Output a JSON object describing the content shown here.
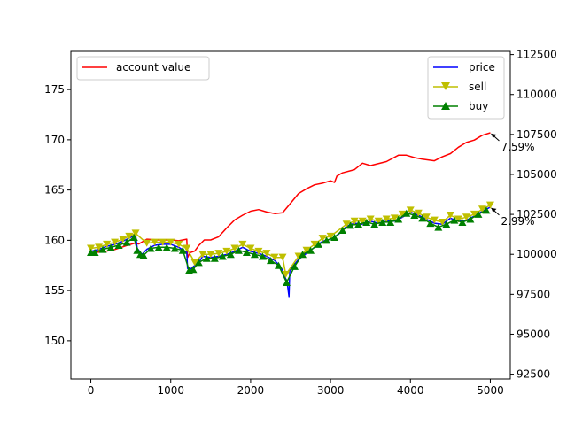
{
  "chart_data": {
    "type": "line",
    "x_ticks": [
      0,
      1000,
      2000,
      3000,
      4000,
      5000
    ],
    "xlim": [
      -250,
      5250
    ],
    "left_axis": {
      "ylim": [
        146.2,
        178.8
      ],
      "ticks": [
        150,
        155,
        160,
        165,
        170,
        175
      ]
    },
    "right_axis": {
      "ylim": [
        92200,
        112700
      ],
      "ticks": [
        92500,
        95000,
        97500,
        100000,
        102500,
        105000,
        107500,
        110000,
        112500
      ]
    },
    "legend_left": {
      "placement": "upper-left",
      "entries": [
        {
          "label": "account value",
          "color": "#ff0000"
        }
      ]
    },
    "legend_right": {
      "placement": "upper-right",
      "entries": [
        {
          "label": "price",
          "color": "#0000ff",
          "marker": "none"
        },
        {
          "label": "sell",
          "color": "#bfbf00",
          "marker": "triangle-down"
        },
        {
          "label": "buy",
          "color": "#008000",
          "marker": "triangle-up"
        }
      ]
    },
    "series": [
      {
        "name": "account value",
        "axis": "right",
        "color": "#ff0000",
        "points": [
          [
            0,
            100100
          ],
          [
            150,
            100150
          ],
          [
            300,
            100300
          ],
          [
            450,
            100550
          ],
          [
            550,
            100700
          ],
          [
            600,
            100650
          ],
          [
            700,
            100950
          ],
          [
            850,
            100900
          ],
          [
            1000,
            100900
          ],
          [
            1100,
            100850
          ],
          [
            1200,
            100950
          ],
          [
            1210,
            99800
          ],
          [
            1240,
            100100
          ],
          [
            1300,
            100200
          ],
          [
            1350,
            100550
          ],
          [
            1420,
            100900
          ],
          [
            1500,
            100900
          ],
          [
            1600,
            101100
          ],
          [
            1700,
            101650
          ],
          [
            1800,
            102150
          ],
          [
            1900,
            102450
          ],
          [
            2000,
            102700
          ],
          [
            2100,
            102800
          ],
          [
            2200,
            102650
          ],
          [
            2300,
            102550
          ],
          [
            2400,
            102600
          ],
          [
            2450,
            102900
          ],
          [
            2500,
            103200
          ],
          [
            2600,
            103800
          ],
          [
            2700,
            104100
          ],
          [
            2800,
            104350
          ],
          [
            2900,
            104450
          ],
          [
            3000,
            104600
          ],
          [
            3050,
            104500
          ],
          [
            3080,
            104900
          ],
          [
            3150,
            105100
          ],
          [
            3300,
            105300
          ],
          [
            3400,
            105700
          ],
          [
            3500,
            105550
          ],
          [
            3700,
            105800
          ],
          [
            3850,
            106200
          ],
          [
            3950,
            106200
          ],
          [
            4050,
            106050
          ],
          [
            4150,
            105950
          ],
          [
            4300,
            105850
          ],
          [
            4400,
            106100
          ],
          [
            4500,
            106300
          ],
          [
            4600,
            106700
          ],
          [
            4700,
            107000
          ],
          [
            4800,
            107150
          ],
          [
            4900,
            107450
          ],
          [
            5000,
            107600
          ]
        ]
      },
      {
        "name": "price",
        "axis": "left",
        "color": "#0000ff",
        "points": [
          [
            0,
            158.9
          ],
          [
            100,
            159.1
          ],
          [
            200,
            159.4
          ],
          [
            300,
            159.6
          ],
          [
            400,
            159.9
          ],
          [
            500,
            160.3
          ],
          [
            560,
            160.6
          ],
          [
            580,
            159.2
          ],
          [
            640,
            158.6
          ],
          [
            700,
            159.1
          ],
          [
            800,
            159.5
          ],
          [
            900,
            159.6
          ],
          [
            1000,
            159.6
          ],
          [
            1100,
            159.3
          ],
          [
            1200,
            158.8
          ],
          [
            1210,
            157.2
          ],
          [
            1260,
            157.2
          ],
          [
            1300,
            157.5
          ],
          [
            1350,
            157.8
          ],
          [
            1400,
            158.4
          ],
          [
            1500,
            158.3
          ],
          [
            1600,
            158.4
          ],
          [
            1700,
            158.6
          ],
          [
            1800,
            158.9
          ],
          [
            1900,
            159.3
          ],
          [
            2000,
            158.9
          ],
          [
            2100,
            158.7
          ],
          [
            2200,
            158.4
          ],
          [
            2300,
            158.0
          ],
          [
            2350,
            157.6
          ],
          [
            2400,
            157.0
          ],
          [
            2430,
            156.4
          ],
          [
            2460,
            155.6
          ],
          [
            2480,
            154.4
          ],
          [
            2490,
            157.0
          ],
          [
            2500,
            157.2
          ],
          [
            2550,
            157.6
          ],
          [
            2600,
            158.1
          ],
          [
            2700,
            158.7
          ],
          [
            2800,
            159.3
          ],
          [
            2900,
            159.9
          ],
          [
            3000,
            160.1
          ],
          [
            3100,
            160.6
          ],
          [
            3200,
            161.4
          ],
          [
            3300,
            161.7
          ],
          [
            3400,
            161.6
          ],
          [
            3500,
            161.9
          ],
          [
            3600,
            161.7
          ],
          [
            3700,
            161.9
          ],
          [
            3800,
            161.9
          ],
          [
            3900,
            162.3
          ],
          [
            4000,
            162.8
          ],
          [
            4100,
            162.5
          ],
          [
            4200,
            162.1
          ],
          [
            4300,
            161.7
          ],
          [
            4400,
            161.6
          ],
          [
            4500,
            162.2
          ],
          [
            4600,
            161.9
          ],
          [
            4700,
            162.0
          ],
          [
            4800,
            162.4
          ],
          [
            4900,
            162.9
          ],
          [
            5000,
            163.3
          ]
        ]
      },
      {
        "name": "sell",
        "axis": "left",
        "color": "#bfbf00",
        "marker": "triangle-down",
        "points": [
          [
            0,
            159.2
          ],
          [
            100,
            159.3
          ],
          [
            200,
            159.6
          ],
          [
            300,
            159.8
          ],
          [
            400,
            160.1
          ],
          [
            480,
            160.4
          ],
          [
            560,
            160.7
          ],
          [
            700,
            159.7
          ],
          [
            800,
            159.8
          ],
          [
            900,
            159.8
          ],
          [
            1000,
            159.8
          ],
          [
            1100,
            159.6
          ],
          [
            1200,
            159.2
          ],
          [
            1300,
            157.8
          ],
          [
            1400,
            158.6
          ],
          [
            1500,
            158.6
          ],
          [
            1600,
            158.7
          ],
          [
            1700,
            158.9
          ],
          [
            1800,
            159.2
          ],
          [
            1900,
            159.6
          ],
          [
            2000,
            159.2
          ],
          [
            2100,
            158.9
          ],
          [
            2200,
            158.7
          ],
          [
            2300,
            158.3
          ],
          [
            2400,
            158.3
          ],
          [
            2440,
            156.6
          ],
          [
            2600,
            158.4
          ],
          [
            2700,
            159.0
          ],
          [
            2800,
            159.6
          ],
          [
            2900,
            160.2
          ],
          [
            3000,
            160.4
          ],
          [
            3200,
            161.6
          ],
          [
            3300,
            161.9
          ],
          [
            3400,
            161.9
          ],
          [
            3500,
            162.1
          ],
          [
            3600,
            161.9
          ],
          [
            3700,
            162.1
          ],
          [
            3800,
            162.2
          ],
          [
            3900,
            162.6
          ],
          [
            4000,
            163.0
          ],
          [
            4100,
            162.7
          ],
          [
            4200,
            162.3
          ],
          [
            4300,
            162.0
          ],
          [
            4400,
            161.8
          ],
          [
            4500,
            162.5
          ],
          [
            4600,
            162.1
          ],
          [
            4700,
            162.3
          ],
          [
            4800,
            162.6
          ],
          [
            4900,
            163.1
          ],
          [
            5000,
            163.5
          ]
        ]
      },
      {
        "name": "buy",
        "axis": "left",
        "color": "#008000",
        "marker": "triangle-up",
        "points": [
          [
            0,
            158.8
          ],
          [
            50,
            158.8
          ],
          [
            150,
            159.1
          ],
          [
            250,
            159.3
          ],
          [
            350,
            159.5
          ],
          [
            450,
            159.8
          ],
          [
            540,
            160.3
          ],
          [
            580,
            159.0
          ],
          [
            620,
            158.6
          ],
          [
            660,
            158.5
          ],
          [
            750,
            159.2
          ],
          [
            850,
            159.3
          ],
          [
            950,
            159.3
          ],
          [
            1050,
            159.2
          ],
          [
            1150,
            159.0
          ],
          [
            1230,
            157.0
          ],
          [
            1280,
            157.1
          ],
          [
            1350,
            157.8
          ],
          [
            1450,
            158.2
          ],
          [
            1550,
            158.2
          ],
          [
            1650,
            158.4
          ],
          [
            1750,
            158.6
          ],
          [
            1850,
            159.0
          ],
          [
            1950,
            158.8
          ],
          [
            2050,
            158.6
          ],
          [
            2150,
            158.4
          ],
          [
            2250,
            158.0
          ],
          [
            2350,
            157.5
          ],
          [
            2450,
            155.8
          ],
          [
            2550,
            157.4
          ],
          [
            2650,
            158.6
          ],
          [
            2750,
            159.0
          ],
          [
            2850,
            159.6
          ],
          [
            2950,
            160.0
          ],
          [
            3050,
            160.3
          ],
          [
            3150,
            161.0
          ],
          [
            3250,
            161.5
          ],
          [
            3350,
            161.6
          ],
          [
            3450,
            161.8
          ],
          [
            3550,
            161.6
          ],
          [
            3650,
            161.8
          ],
          [
            3750,
            161.8
          ],
          [
            3850,
            162.1
          ],
          [
            3950,
            162.7
          ],
          [
            4050,
            162.5
          ],
          [
            4150,
            162.2
          ],
          [
            4250,
            161.7
          ],
          [
            4350,
            161.3
          ],
          [
            4450,
            161.6
          ],
          [
            4550,
            162.0
          ],
          [
            4650,
            161.8
          ],
          [
            4750,
            162.1
          ],
          [
            4850,
            162.6
          ],
          [
            4950,
            163.0
          ]
        ]
      }
    ],
    "annotations": [
      {
        "text": "7.59%",
        "axis": "right",
        "point": [
          5000,
          107600
        ]
      },
      {
        "text": "2.99%",
        "axis": "left",
        "point": [
          5000,
          163.3
        ]
      }
    ]
  }
}
